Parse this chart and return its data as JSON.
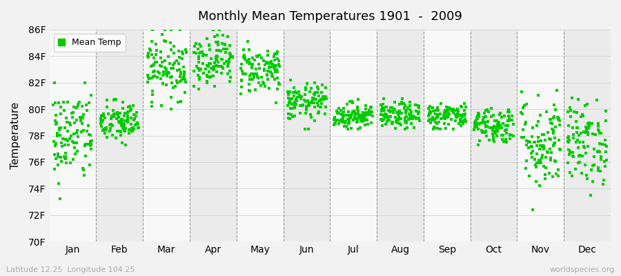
{
  "title": "Monthly Mean Temperatures 1901  -  2009",
  "ylabel": "Temperature",
  "bottom_left": "Latitude 12.25  Longitude 104.25",
  "bottom_right": "worldspecies.org",
  "legend_label": "Mean Temp",
  "dot_color": "#00cc00",
  "background_color": "#f2f2f2",
  "band_color_light": "#f8f8f8",
  "band_color_dark": "#ebebeb",
  "ylim": [
    70,
    86
  ],
  "yticks": [
    70,
    72,
    74,
    76,
    78,
    80,
    82,
    84,
    86
  ],
  "ytick_labels": [
    "70F",
    "72F",
    "74F",
    "76F",
    "78F",
    "80F",
    "82F",
    "84F",
    "86F"
  ],
  "months": [
    "Jan",
    "Feb",
    "Mar",
    "Apr",
    "May",
    "Jun",
    "Jul",
    "Aug",
    "Sep",
    "Oct",
    "Nov",
    "Dec"
  ],
  "month_means": [
    78.0,
    79.0,
    83.2,
    83.8,
    83.0,
    80.5,
    79.5,
    79.5,
    79.5,
    78.8,
    77.5,
    77.5
  ],
  "month_stds": [
    1.8,
    0.8,
    1.2,
    1.0,
    0.9,
    0.7,
    0.5,
    0.5,
    0.5,
    0.7,
    1.8,
    1.6
  ],
  "month_mins": [
    73.0,
    76.0,
    80.0,
    81.5,
    80.5,
    78.0,
    78.5,
    78.5,
    78.5,
    77.0,
    72.0,
    73.5
  ],
  "month_maxs": [
    82.0,
    82.5,
    86.0,
    86.0,
    85.5,
    82.5,
    81.0,
    81.0,
    81.5,
    81.0,
    81.5,
    81.0
  ],
  "n_years": 109,
  "seed": 42,
  "figsize": [
    9.0,
    4.0
  ],
  "dpi": 100
}
